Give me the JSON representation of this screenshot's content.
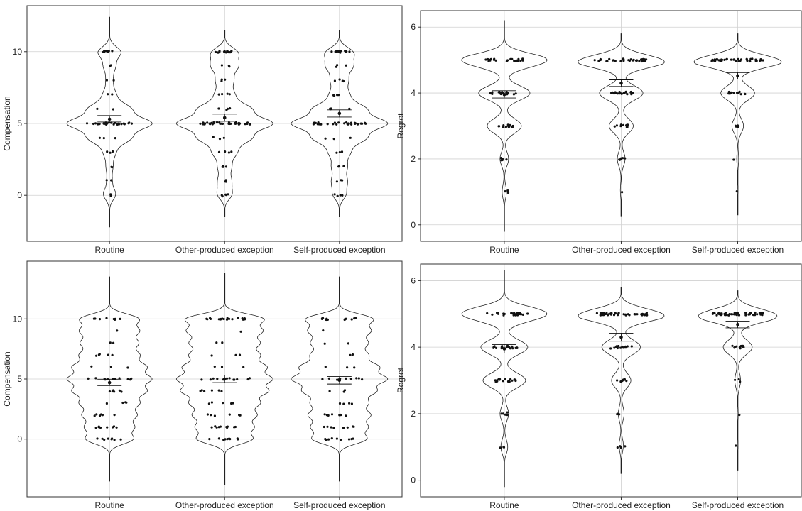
{
  "chart_data": [
    {
      "type": "violin",
      "ylabel": "Compensation",
      "categories": [
        "Routine",
        "Other-produced exception",
        "Self-produced exception"
      ],
      "ylim": [
        -3.2,
        13.2
      ],
      "yticks": [
        0,
        5,
        10
      ],
      "grid": true,
      "violin_range": [
        [
          -2.2,
          12.4
        ],
        [
          -1.5,
          11.5
        ],
        [
          -1.5,
          11.5
        ]
      ],
      "density": [
        {
          "0": 0.16,
          "1": 0.06,
          "2": 0.08,
          "3": 0.14,
          "4": 0.5,
          "5": 1.0,
          "6": 0.5,
          "7": 0.15,
          "8": 0.08,
          "9": 0.14,
          "10": 0.28
        },
        {
          "0": 0.22,
          "1": 0.14,
          "2": 0.14,
          "3": 0.25,
          "4": 0.55,
          "5": 1.0,
          "6": 0.55,
          "7": 0.2,
          "8": 0.18,
          "9": 0.28,
          "10": 0.4
        },
        {
          "0": 0.2,
          "1": 0.16,
          "2": 0.16,
          "3": 0.22,
          "4": 0.55,
          "5": 1.0,
          "6": 0.55,
          "7": 0.2,
          "8": 0.18,
          "9": 0.28,
          "10": 0.42
        }
      ],
      "points": [
        {
          "0": 3,
          "1": 2,
          "2": 2,
          "3": 3,
          "4": 3,
          "5": 30,
          "6": 2,
          "7": 2,
          "8": 2,
          "9": 2,
          "10": 8
        },
        {
          "0": 5,
          "1": 4,
          "2": 4,
          "3": 4,
          "4": 3,
          "5": 35,
          "6": 4,
          "7": 4,
          "8": 3,
          "9": 3,
          "10": 14
        },
        {
          "0": 4,
          "1": 3,
          "2": 3,
          "3": 3,
          "4": 3,
          "5": 32,
          "6": 4,
          "7": 4,
          "8": 4,
          "9": 3,
          "10": 14
        }
      ],
      "means": [
        5.3,
        5.4,
        5.7
      ],
      "ci": [
        [
          5.1,
          5.55
        ],
        [
          5.15,
          5.65
        ],
        [
          5.45,
          5.95
        ]
      ]
    },
    {
      "type": "violin",
      "ylabel": "Regret",
      "categories": [
        "Routine",
        "Other-produced exception",
        "Self-produced exception"
      ],
      "ylim": [
        -0.5,
        6.5
      ],
      "yticks": [
        0,
        2,
        4,
        6
      ],
      "grid": true,
      "violin_range": [
        [
          -0.2,
          6.2
        ],
        [
          0.25,
          5.8
        ],
        [
          0.3,
          5.8
        ]
      ],
      "density": [
        {
          "1": 0.05,
          "2": 0.1,
          "3": 0.4,
          "4": 0.6,
          "5": 1.0
        },
        {
          "1": 0.02,
          "2": 0.08,
          "3": 0.25,
          "4": 0.45,
          "5": 1.0
        },
        {
          "1": 0.01,
          "2": 0.02,
          "3": 0.12,
          "4": 0.35,
          "5": 1.0
        }
      ],
      "points": [
        {
          "1": 3,
          "2": 6,
          "3": 16,
          "4": 18,
          "5": 22
        },
        {
          "1": 1,
          "2": 6,
          "3": 10,
          "4": 22,
          "5": 34
        },
        {
          "1": 1,
          "2": 1,
          "3": 6,
          "4": 14,
          "5": 46
        }
      ],
      "means": [
        3.95,
        4.3,
        4.52
      ],
      "ci": [
        [
          3.85,
          4.07
        ],
        [
          4.2,
          4.4
        ],
        [
          4.42,
          4.62
        ]
      ]
    },
    {
      "type": "violin",
      "ylabel": "Compensation",
      "categories": [
        "Routine",
        "Other-produced exception",
        "Self-produced exception"
      ],
      "ylim": [
        -4.8,
        14.8
      ],
      "yticks": [
        0,
        5,
        10
      ],
      "grid": true,
      "violin_range": [
        [
          -3.5,
          13.5
        ],
        [
          -3.8,
          13.8
        ],
        [
          -3.5,
          13.5
        ]
      ],
      "density": [
        {
          "0": 0.5,
          "1": 0.5,
          "2": 0.55,
          "3": 0.6,
          "4": 0.75,
          "5": 0.85,
          "6": 0.75,
          "7": 0.6,
          "8": 0.58,
          "9": 0.6,
          "10": 0.62
        },
        {
          "0": 0.5,
          "1": 0.5,
          "2": 0.55,
          "3": 0.6,
          "4": 0.75,
          "5": 0.82,
          "6": 0.72,
          "7": 0.6,
          "8": 0.6,
          "9": 0.65,
          "10": 0.7
        },
        {
          "0": 0.5,
          "1": 0.5,
          "2": 0.55,
          "3": 0.5,
          "4": 0.65,
          "5": 0.85,
          "6": 0.7,
          "7": 0.5,
          "8": 0.5,
          "9": 0.55,
          "10": 0.62
        }
      ],
      "points": [
        {
          "0": 8,
          "1": 8,
          "2": 6,
          "3": 4,
          "4": 6,
          "5": 12,
          "6": 3,
          "7": 5,
          "8": 2,
          "9": 1,
          "10": 8
        },
        {
          "0": 10,
          "1": 10,
          "2": 8,
          "3": 5,
          "4": 6,
          "5": 12,
          "6": 3,
          "7": 3,
          "8": 2,
          "9": 1,
          "10": 20
        },
        {
          "0": 10,
          "1": 8,
          "2": 8,
          "3": 4,
          "4": 3,
          "5": 10,
          "6": 3,
          "7": 2,
          "8": 2,
          "9": 1,
          "10": 14
        }
      ],
      "means": [
        4.7,
        5.0,
        4.9
      ],
      "ci": [
        [
          4.45,
          4.98
        ],
        [
          4.7,
          5.32
        ],
        [
          4.58,
          5.2
        ]
      ]
    },
    {
      "type": "violin",
      "ylabel": "Regret",
      "categories": [
        "Routine",
        "Other-produced exception",
        "Self-produced exception"
      ],
      "ylim": [
        -0.5,
        6.5
      ],
      "yticks": [
        0,
        2,
        4,
        6
      ],
      "grid": true,
      "violin_range": [
        [
          -0.2,
          6.3
        ],
        [
          0.2,
          5.8
        ],
        [
          0.3,
          5.7
        ]
      ],
      "density": [
        {
          "1": 0.08,
          "2": 0.1,
          "3": 0.5,
          "4": 0.55,
          "5": 1.0
        },
        {
          "1": 0.05,
          "2": 0.06,
          "3": 0.2,
          "4": 0.4,
          "5": 1.0
        },
        {
          "1": 0.01,
          "2": 0.01,
          "3": 0.06,
          "4": 0.3,
          "5": 1.0
        }
      ],
      "points": [
        {
          "1": 5,
          "2": 5,
          "3": 20,
          "4": 20,
          "5": 26
        },
        {
          "1": 4,
          "2": 3,
          "3": 8,
          "4": 20,
          "5": 44
        },
        {
          "1": 1,
          "2": 1,
          "3": 3,
          "4": 12,
          "5": 50
        }
      ],
      "means": [
        3.95,
        4.3,
        4.68
      ],
      "ci": [
        [
          3.82,
          4.08
        ],
        [
          4.18,
          4.42
        ],
        [
          4.58,
          4.78
        ]
      ]
    }
  ]
}
